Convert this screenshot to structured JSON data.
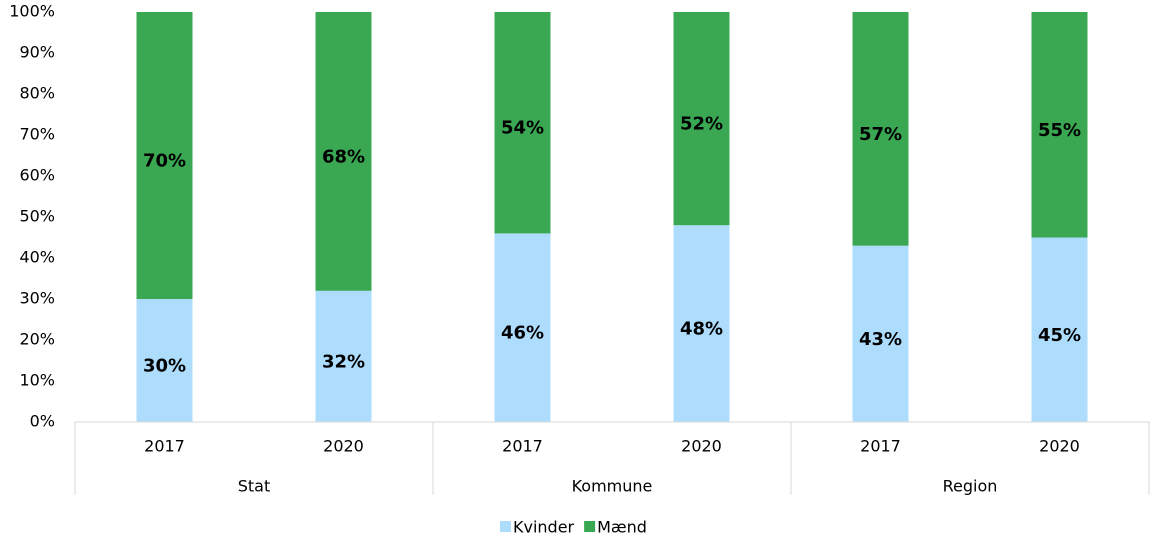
{
  "chart_data": {
    "type": "stacked_bar",
    "groups": [
      {
        "name": "Stat",
        "categories": [
          "2017",
          "2020"
        ]
      },
      {
        "name": "Kommune",
        "categories": [
          "2017",
          "2020"
        ]
      },
      {
        "name": "Region",
        "categories": [
          "2017",
          "2020"
        ]
      }
    ],
    "series": [
      {
        "name": "Kvinder",
        "color": "#addcfc",
        "values": [
          30,
          32,
          46,
          48,
          43,
          45
        ],
        "value_labels": [
          "30%",
          "32%",
          "46%",
          "48%",
          "43%",
          "45%"
        ]
      },
      {
        "name": "Mænd",
        "color": "#3aa753",
        "values": [
          70,
          68,
          54,
          52,
          57,
          55
        ],
        "value_labels": [
          "70%",
          "68%",
          "54%",
          "52%",
          "57%",
          "55%"
        ]
      }
    ],
    "ylim": [
      0,
      100
    ],
    "yticks": [
      {
        "value": 0,
        "label": "0%"
      },
      {
        "value": 10,
        "label": "10%"
      },
      {
        "value": 20,
        "label": "20%"
      },
      {
        "value": 30,
        "label": "30%"
      },
      {
        "value": 40,
        "label": "40%"
      },
      {
        "value": 50,
        "label": "50%"
      },
      {
        "value": 60,
        "label": "60%"
      },
      {
        "value": 70,
        "label": "70%"
      },
      {
        "value": 80,
        "label": "80%"
      },
      {
        "value": 90,
        "label": "90%"
      },
      {
        "value": 100,
        "label": "100%"
      }
    ],
    "legend": "bottom"
  }
}
